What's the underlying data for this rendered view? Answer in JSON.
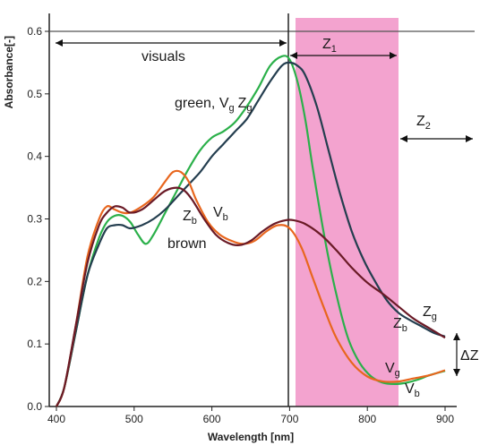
{
  "chart_data": {
    "type": "line",
    "xlabel": "Wavelength [nm]",
    "ylabel": "Absorbance[-]",
    "xlim": [
      400,
      900
    ],
    "ylim": [
      0.0,
      0.62
    ],
    "xticks": [
      "400",
      "500",
      "600",
      "700",
      "800",
      "900"
    ],
    "yticks": [
      "0.0",
      "0.1",
      "0.2",
      "0.3",
      "0.4",
      "0.5",
      "0.6"
    ],
    "grid": false,
    "legend": "none",
    "colors": {
      "Vg": "#2bb04a",
      "Zg": "#243e4f",
      "Vb": "#e8661e",
      "Zb": "#6a1a26",
      "highlight": "#f3a3cf"
    },
    "series": [
      {
        "key": "Vg",
        "x": [
          400,
          410,
          425,
          440,
          455,
          465,
          475,
          485,
          495,
          505,
          515,
          525,
          540,
          555,
          570,
          585,
          600,
          615,
          630,
          645,
          660,
          675,
          690,
          700,
          710,
          720,
          730,
          745,
          760,
          775,
          790,
          805,
          820,
          835,
          850,
          865,
          880,
          900
        ],
        "y": [
          0.0,
          0.03,
          0.12,
          0.21,
          0.27,
          0.295,
          0.305,
          0.305,
          0.295,
          0.275,
          0.26,
          0.275,
          0.31,
          0.345,
          0.38,
          0.41,
          0.43,
          0.44,
          0.455,
          0.48,
          0.51,
          0.545,
          0.56,
          0.555,
          0.52,
          0.46,
          0.38,
          0.27,
          0.18,
          0.11,
          0.07,
          0.048,
          0.038,
          0.036,
          0.038,
          0.043,
          0.05,
          0.057
        ]
      },
      {
        "key": "Zg",
        "x": [
          400,
          410,
          425,
          440,
          455,
          465,
          475,
          485,
          495,
          510,
          525,
          540,
          555,
          570,
          585,
          600,
          615,
          630,
          645,
          660,
          675,
          690,
          700,
          710,
          720,
          735,
          750,
          765,
          780,
          795,
          810,
          825,
          840,
          855,
          870,
          885,
          900
        ],
        "y": [
          0.0,
          0.03,
          0.12,
          0.21,
          0.26,
          0.285,
          0.29,
          0.29,
          0.285,
          0.29,
          0.3,
          0.315,
          0.335,
          0.355,
          0.375,
          0.4,
          0.42,
          0.44,
          0.46,
          0.49,
          0.52,
          0.545,
          0.55,
          0.545,
          0.53,
          0.48,
          0.41,
          0.34,
          0.28,
          0.235,
          0.2,
          0.17,
          0.15,
          0.138,
          0.128,
          0.118,
          0.112
        ]
      },
      {
        "key": "Vb",
        "x": [
          400,
          410,
          425,
          440,
          455,
          465,
          475,
          485,
          495,
          510,
          525,
          540,
          550,
          560,
          570,
          580,
          595,
          610,
          625,
          640,
          655,
          670,
          685,
          700,
          715,
          730,
          745,
          760,
          780,
          800,
          820,
          840,
          860,
          880,
          900
        ],
        "y": [
          0.0,
          0.03,
          0.13,
          0.24,
          0.3,
          0.32,
          0.315,
          0.31,
          0.31,
          0.32,
          0.335,
          0.36,
          0.375,
          0.375,
          0.36,
          0.33,
          0.295,
          0.275,
          0.265,
          0.26,
          0.265,
          0.28,
          0.29,
          0.285,
          0.255,
          0.205,
          0.155,
          0.11,
          0.07,
          0.048,
          0.04,
          0.04,
          0.045,
          0.05,
          0.058
        ]
      },
      {
        "key": "Zb",
        "x": [
          400,
          410,
          425,
          440,
          455,
          465,
          475,
          485,
          495,
          510,
          525,
          540,
          555,
          565,
          575,
          590,
          605,
          620,
          635,
          650,
          665,
          680,
          695,
          705,
          720,
          740,
          760,
          780,
          800,
          820,
          840,
          860,
          880,
          900
        ],
        "y": [
          0.0,
          0.03,
          0.13,
          0.23,
          0.29,
          0.31,
          0.32,
          0.318,
          0.31,
          0.315,
          0.33,
          0.345,
          0.35,
          0.345,
          0.33,
          0.3,
          0.275,
          0.262,
          0.258,
          0.265,
          0.28,
          0.292,
          0.298,
          0.298,
          0.292,
          0.275,
          0.25,
          0.222,
          0.198,
          0.18,
          0.16,
          0.14,
          0.125,
          0.11
        ]
      }
    ],
    "annotations": {
      "visuals": "visuals",
      "green": "green, V",
      "g_sub": "g",
      "z": "Z",
      "v": "V",
      "b_sub": "b",
      "brown": "brown",
      "z1_sub": "1",
      "z2_sub": "2",
      "delta_z": "ΔZ"
    }
  }
}
